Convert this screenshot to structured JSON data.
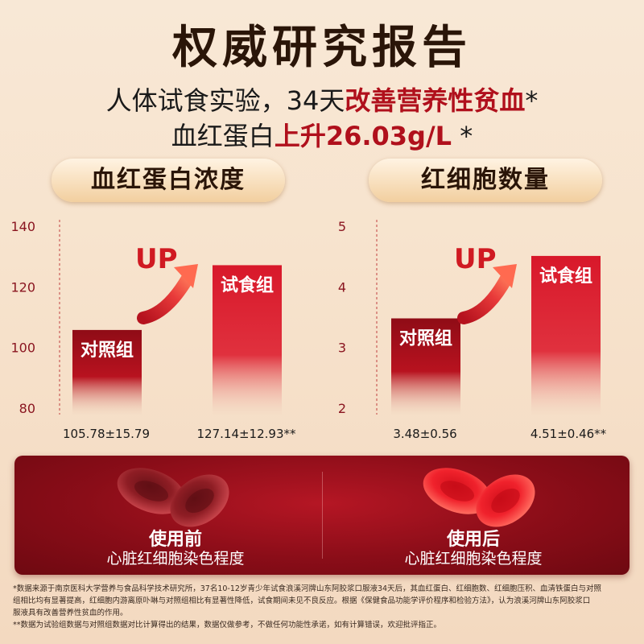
{
  "title": "权威研究报告",
  "subtitle1": {
    "prefix": "人体试食实验，34天",
    "highlight": "改善营养性贫血",
    "suffix": "*"
  },
  "subtitle2": {
    "prefix": "血红蛋白",
    "highlight": "上升26.03g/L",
    "suffix": " *"
  },
  "colors": {
    "accent": "#b0101c",
    "bar_dark": "#8f0c16",
    "bar_light": "#d91a2a"
  },
  "chart_data": [
    {
      "type": "bar",
      "title": "血红蛋白浓度",
      "categories": [
        "对照组",
        "试食组"
      ],
      "values": [
        105.78,
        127.14
      ],
      "value_labels": [
        "105.78±15.79",
        "127.14±12.93**"
      ],
      "yticks": [
        "140",
        "120",
        "100",
        "80"
      ],
      "ylim": [
        80,
        140
      ],
      "annotation": "UP",
      "grid": false
    },
    {
      "type": "bar",
      "title": "红细胞数量",
      "categories": [
        "对照组",
        "试食组"
      ],
      "values": [
        3.48,
        4.51
      ],
      "value_labels": [
        "3.48±0.56",
        "4.51±0.46**"
      ],
      "yticks": [
        "5",
        "4",
        "3",
        "2"
      ],
      "ylim": [
        2,
        5
      ],
      "annotation": "UP",
      "grid": false
    }
  ],
  "comparison": {
    "before": {
      "title": "使用前",
      "caption": "心脏红细胞染色程度"
    },
    "after": {
      "title": "使用后",
      "caption": "心脏红细胞染色程度"
    }
  },
  "footnotes": [
    "*数据来源于南京医科大学营养与食品科学技术研究所，37名10-12岁青少年试食浪溪河牌山东阿胶浆口服液34天后，其血红蛋白、红细胞数、红细胞压积、血清铁蛋白与对照",
    "组相比均有显著提高，红细胞内游离原卟啉与对照组相比有显著性降低，试食期间未见不良反应。根据《保健食品功能学评价程序和检验方法》，认为浪溪河牌山东阿胶浆口",
    "服液具有改善营养性贫血的作用。",
    "**数据为试验组数据与对照组数据对比计算得出的结果，数据仅做参考，不做任何功能性承诺，如有计算错误，欢迎批评指正。"
  ]
}
